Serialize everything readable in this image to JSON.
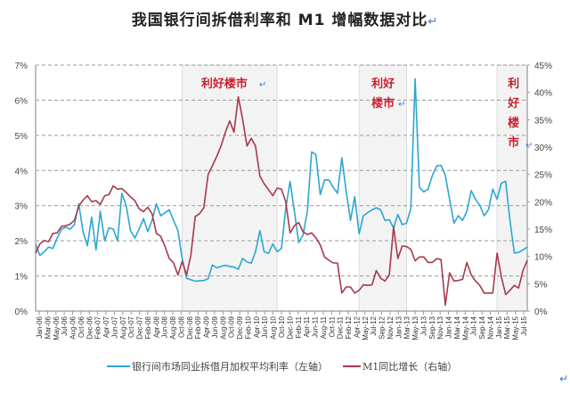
{
  "title": "我国银行间拆借利率和 M1 增幅数据对比",
  "return_mark": "↵",
  "chart_data": {
    "type": "line",
    "title": "我国银行间拆借利率和 M1 增幅数据对比",
    "x": [
      "Jan-06",
      "Feb-06",
      "Mar-06",
      "Apr-06",
      "May-06",
      "Jun-06",
      "Jul-06",
      "Aug-06",
      "Sep-06",
      "Oct-06",
      "Nov-06",
      "Dec-06",
      "Jan-07",
      "Feb-07",
      "Mar-07",
      "Apr-07",
      "May-07",
      "Jun-07",
      "Jul-07",
      "Aug-07",
      "Sep-07",
      "Oct-07",
      "Nov-07",
      "Dec-07",
      "Jan-08",
      "Feb-08",
      "Mar-08",
      "Apr-08",
      "May-08",
      "Jun-08",
      "Jul-08",
      "Aug-08",
      "Sep-08",
      "Oct-08",
      "Nov-08",
      "Dec-08",
      "Jan-09",
      "Feb-09",
      "Mar-09",
      "Apr-09",
      "May-09",
      "Jun-09",
      "Jul-09",
      "Aug-09",
      "Sep-09",
      "Oct-09",
      "Nov-09",
      "Dec-09",
      "Jan-10",
      "Feb-10",
      "Mar-10",
      "Apr-10",
      "May-10",
      "Jun-10",
      "Jul-10",
      "Aug-10",
      "Sep-10",
      "Oct-10",
      "Nov-10",
      "Dec-10",
      "Jan-11",
      "Feb-11",
      "Mar-11",
      "Apr-11",
      "May-11",
      "Jun-11",
      "Jul-11",
      "Aug-11",
      "Sep-11",
      "Oct-11",
      "Nov-11",
      "Dec-11",
      "Jan-12",
      "Feb-12",
      "Mar-12",
      "Apr-12",
      "May-12",
      "Jun-12",
      "Jul-12",
      "Aug-12",
      "Sep-12",
      "Oct-12",
      "Nov-12",
      "Dec-12",
      "Jan-13",
      "Feb-13",
      "Mar-13",
      "Apr-13",
      "May-13",
      "Jun-13",
      "Jul-13",
      "Aug-13",
      "Sep-13",
      "Oct-13",
      "Nov-13",
      "Dec-13",
      "Jan-14",
      "Feb-14",
      "Mar-14",
      "Apr-14",
      "May-14",
      "Jun-14",
      "Jul-14",
      "Aug-14",
      "Sep-14",
      "Oct-14",
      "Nov-14",
      "Dec-14",
      "Jan-15",
      "Feb-15",
      "Mar-15",
      "Apr-15",
      "May-15",
      "Jun-15",
      "Jul-15"
    ],
    "x_tick_labels": [
      "Jan-06",
      "Mar-06",
      "May-06",
      "Jul-06",
      "Aug-06",
      "Oct-06",
      "Dec-06",
      "Feb-07",
      "Apr-07",
      "Jun-07",
      "Aug-07",
      "Oct-07",
      "Dec-07",
      "Feb-08",
      "Apr-08",
      "Jun-08",
      "Aug-08",
      "Oct-08",
      "Dec-08",
      "Feb-09",
      "Apr-09",
      "Jun-09",
      "Aug-09",
      "Oct-09",
      "Dec-09",
      "Feb-10",
      "Apr-10",
      "Jun-10",
      "Aug-10",
      "Oct-10",
      "Dec-10",
      "Feb-11",
      "Apr-11",
      "Jun-11",
      "Aug-11",
      "Oct-11",
      "Dec-11",
      "Feb-12",
      "Apr-12",
      "May-12",
      "Jul-12",
      "Sep-12",
      "Nov-12",
      "Jan-13",
      "Mar-13",
      "May-13",
      "Jul-13",
      "Sep-13",
      "Nov-13",
      "Jan-14",
      "Mar-14",
      "May-14",
      "Jul-14",
      "Sep-14",
      "Nov-14",
      "Jan-15",
      "Mar-15",
      "May-15",
      "Jul-15"
    ],
    "y_left": {
      "ylim": [
        0,
        7
      ],
      "unit": "%",
      "ticks": [
        "0%",
        "1%",
        "2%",
        "3%",
        "4%",
        "5%",
        "6%",
        "7%"
      ]
    },
    "y_right": {
      "ylim": [
        0,
        45
      ],
      "unit": "%",
      "ticks": [
        "0%",
        "5%",
        "10%",
        "15%",
        "20%",
        "25%",
        "30%",
        "35%",
        "40%",
        "45%"
      ]
    },
    "grid": "horizontal dashed",
    "legend_position": "bottom",
    "series": [
      {
        "name": "银行间市场同业拆借月加权平均利率（左轴）",
        "axis": "left",
        "color": "#2ba6d3",
        "values": [
          1.9,
          1.58,
          1.69,
          1.82,
          1.78,
          2.08,
          2.33,
          2.39,
          2.33,
          2.46,
          3.05,
          2.25,
          1.86,
          2.67,
          1.74,
          2.84,
          2.0,
          2.37,
          2.33,
          1.99,
          3.35,
          3.0,
          2.29,
          2.08,
          2.33,
          2.63,
          2.26,
          2.58,
          3.05,
          2.71,
          2.8,
          2.88,
          2.58,
          2.29,
          1.48,
          0.93,
          0.89,
          0.85,
          0.86,
          0.87,
          0.92,
          1.31,
          1.23,
          1.27,
          1.3,
          1.27,
          1.25,
          1.19,
          1.5,
          1.4,
          1.36,
          1.69,
          2.29,
          1.69,
          1.64,
          1.91,
          1.69,
          1.78,
          2.92,
          3.69,
          2.84,
          1.95,
          2.16,
          2.84,
          4.53,
          4.45,
          3.31,
          3.73,
          3.73,
          3.52,
          3.35,
          4.36,
          3.43,
          2.58,
          3.26,
          2.2,
          2.71,
          2.8,
          2.88,
          2.94,
          2.88,
          2.58,
          2.6,
          2.37,
          2.75,
          2.46,
          2.5,
          2.92,
          6.61,
          3.52,
          3.39,
          3.47,
          3.86,
          4.13,
          4.15,
          3.86,
          3.18,
          2.5,
          2.71,
          2.58,
          2.84,
          3.43,
          3.18,
          3.01,
          2.71,
          2.88,
          3.47,
          3.18,
          3.64,
          3.69,
          2.58,
          1.65,
          1.67,
          1.74,
          1.82
        ]
      },
      {
        "name": "M1同比增长（右轴）",
        "axis": "right",
        "color": "#a73a4c",
        "values": [
          10.6,
          12.3,
          12.9,
          12.7,
          14.2,
          14.3,
          15.5,
          15.6,
          15.9,
          16.6,
          19.2,
          20.3,
          21.1,
          20.0,
          20.2,
          19.5,
          21.1,
          21.3,
          22.9,
          22.3,
          22.4,
          21.7,
          20.9,
          20.2,
          18.7,
          18.2,
          19.0,
          17.8,
          14.2,
          13.7,
          11.8,
          9.6,
          8.8,
          6.6,
          9.1,
          6.6,
          10.2,
          17.3,
          17.8,
          18.9,
          25.0,
          26.6,
          28.3,
          30.2,
          32.7,
          34.8,
          32.7,
          39.2,
          35.1,
          30.2,
          31.6,
          30.2,
          24.7,
          23.3,
          22.2,
          21.1,
          22.5,
          22.3,
          20.0,
          14.3,
          15.6,
          16.2,
          14.5,
          14.0,
          14.3,
          13.4,
          12.1,
          9.9,
          9.3,
          8.8,
          8.8,
          3.3,
          4.4,
          4.4,
          3.3,
          3.8,
          4.8,
          4.7,
          4.8,
          7.4,
          6.0,
          5.5,
          6.6,
          15.4,
          9.6,
          11.9,
          11.8,
          11.3,
          9.2,
          9.9,
          9.9,
          8.9,
          8.9,
          9.6,
          9.4,
          1.1,
          7.0,
          5.5,
          5.6,
          5.8,
          8.9,
          6.6,
          5.5,
          4.7,
          3.3,
          3.3,
          3.3,
          10.6,
          6.3,
          3.0,
          3.8,
          4.7,
          4.2,
          7.4,
          9.3
        ]
      }
    ],
    "annotations": [
      {
        "text": "利好楼市",
        "from": "Nov-08",
        "to": "Sep-10",
        "layout": "row"
      },
      {
        "text": "利好楼市",
        "from": "Apr-12",
        "to": "Mar-13",
        "layout": "two-rows"
      },
      {
        "text": "利好楼市",
        "from": "Dec-14",
        "to": "Jul-15",
        "layout": "column"
      }
    ]
  }
}
